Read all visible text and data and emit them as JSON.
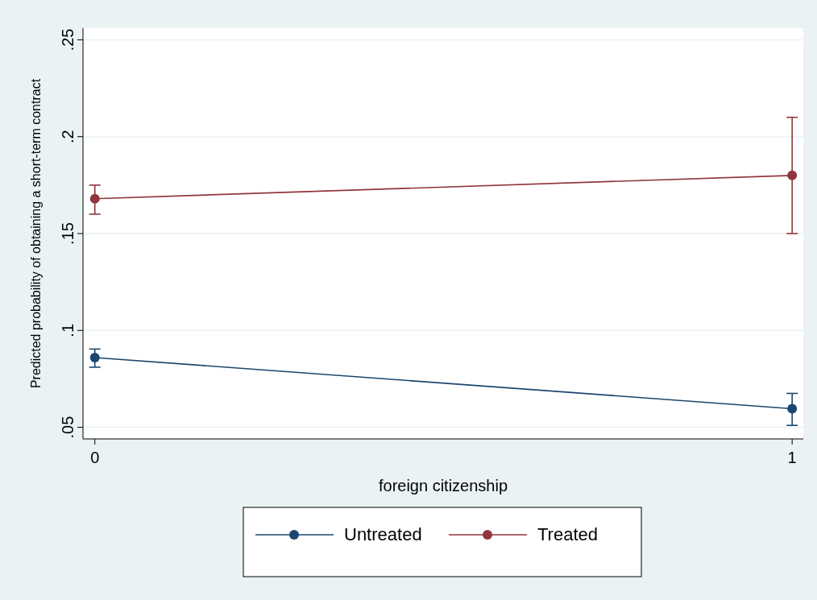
{
  "chart_data": {
    "type": "line",
    "xlabel": "foreign citizenship",
    "ylabel": "Predicted probability of obtaining a short-term contract",
    "x": [
      0,
      1
    ],
    "series": [
      {
        "name": "Untreated",
        "color": "#1a476f",
        "values": [
          0.086,
          0.0596
        ],
        "errors": [
          [
            0.081,
            0.0904
          ],
          [
            0.051,
            0.0675
          ]
        ]
      },
      {
        "name": "Treated",
        "color": "#90353b",
        "values": [
          0.168,
          0.18
        ],
        "errors": [
          [
            0.16,
            0.175
          ],
          [
            0.15,
            0.21
          ]
        ]
      }
    ],
    "xlim": [
      -0.017,
      1.016
    ],
    "ylim": [
      0.044,
      0.256
    ],
    "xticks": [
      0,
      1
    ],
    "yticks": [
      {
        "value": 0.05,
        "label": ".05"
      },
      {
        "value": 0.1,
        "label": ".1"
      },
      {
        "value": 0.15,
        "label": ".15"
      },
      {
        "value": 0.2,
        "label": ".2"
      },
      {
        "value": 0.25,
        "label": ".25"
      }
    ],
    "grid": "y",
    "legend": "bottom",
    "marker": "circle",
    "line_style": "solid"
  }
}
